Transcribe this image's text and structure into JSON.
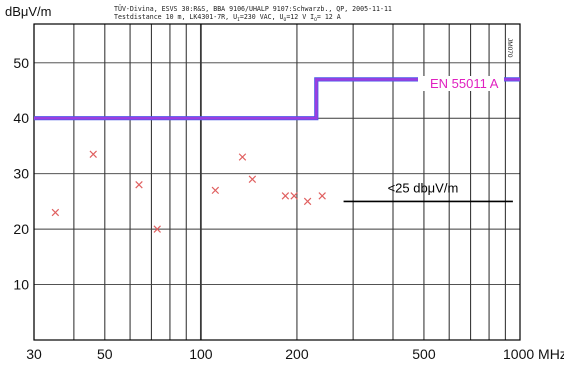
{
  "chart_data": {
    "type": "scatter",
    "ylabel": "dBμV/m",
    "header_line1": "TÜV-Divina, ESVS 30:R&S, BBA 9106/UHALP 9107:Schwarzb., QP, 2005-11-11",
    "header_line2_parts": [
      "Testdistance 10 m, LK4301-7R, U",
      "I",
      "=230 VAC, U",
      "O",
      "=12 V I",
      "O",
      "= 12 A"
    ],
    "side_label": "JM070",
    "x_scale": "log",
    "xlim": [
      30,
      1000
    ],
    "ylim": [
      0,
      57
    ],
    "x_ticks": [
      {
        "value": 30,
        "label": "30"
      },
      {
        "value": 50,
        "label": "50"
      },
      {
        "value": 100,
        "label": "100"
      },
      {
        "value": 200,
        "label": "200"
      },
      {
        "value": 500,
        "label": "500"
      },
      {
        "value": 1000,
        "label": "1000 MHz"
      }
    ],
    "y_ticks": [
      {
        "value": 10,
        "label": "10"
      },
      {
        "value": 20,
        "label": "20"
      },
      {
        "value": 30,
        "label": "30"
      },
      {
        "value": 40,
        "label": "40"
      },
      {
        "value": 50,
        "label": "50"
      }
    ],
    "grid": true,
    "limit_line": {
      "name": "EN 55011 A",
      "color": "#9a3ee0",
      "points": [
        [
          30,
          40
        ],
        [
          230,
          40
        ],
        [
          230,
          47
        ],
        [
          1000,
          47
        ]
      ]
    },
    "measurements": {
      "marker": "x",
      "color": "#e06060",
      "points": [
        [
          35,
          23
        ],
        [
          46,
          33.5
        ],
        [
          64,
          28
        ],
        [
          73,
          20
        ],
        [
          111,
          27
        ],
        [
          135,
          33
        ],
        [
          145,
          29
        ],
        [
          184,
          26
        ],
        [
          196,
          26
        ],
        [
          216,
          25
        ],
        [
          240,
          26
        ]
      ]
    },
    "annotation": {
      "text": "<25 dbμV/m",
      "x1": 280,
      "x2": 950,
      "y": 25
    },
    "colors": {
      "grid": "#3a3a3a",
      "axis_text": "#111111",
      "legend_text": "#e020c0",
      "annotation_line": "#000000"
    }
  }
}
